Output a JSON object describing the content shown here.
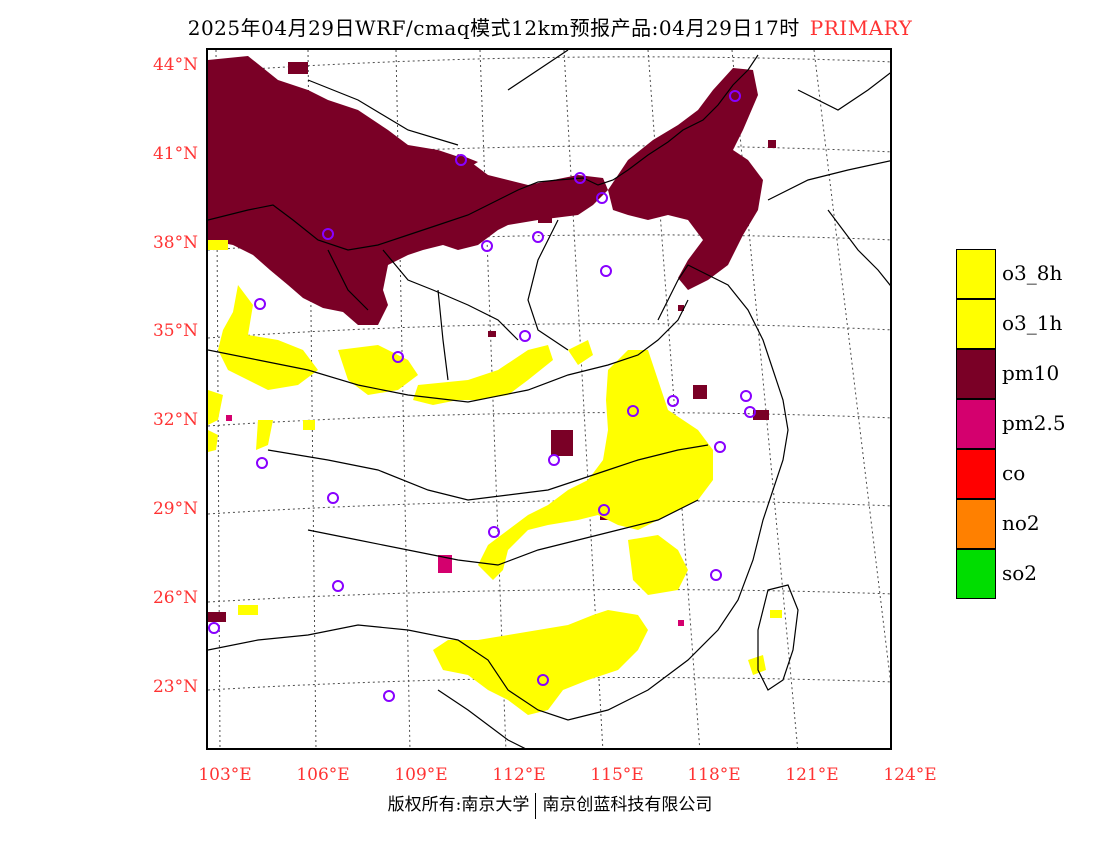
{
  "header": {
    "title": "2025年04月29日WRF/cmaq模式12km预报产品:04月29日17时",
    "mode": "PRIMARY",
    "mode_color": "#ff3333"
  },
  "map": {
    "lat_labels": [
      "44°N",
      "41°N",
      "38°N",
      "35°N",
      "32°N",
      "29°N",
      "26°N",
      "23°N"
    ],
    "lon_labels": [
      "103°E",
      "106°E",
      "109°E",
      "112°E",
      "115°E",
      "118°E",
      "121°E",
      "124°E"
    ],
    "label_color": "#ff3333",
    "region_colors": {
      "pm10": "#7a0026",
      "o3": "#ffff00",
      "pm25": "#d4006e",
      "station_marker": "#8800ff"
    }
  },
  "legend": {
    "items": [
      {
        "label": "o3_8h",
        "color": "#ffff00"
      },
      {
        "label": "o3_1h",
        "color": "#ffff00"
      },
      {
        "label": "pm10",
        "color": "#7a0026"
      },
      {
        "label": "pm2.5",
        "color": "#d4006e"
      },
      {
        "label": "co",
        "color": "#ff0000"
      },
      {
        "label": "no2",
        "color": "#ff8000"
      },
      {
        "label": "so2",
        "color": "#00dd00"
      }
    ]
  },
  "footer": {
    "left": "版权所有:南京大学",
    "right": "南京创蓝科技有限公司"
  }
}
